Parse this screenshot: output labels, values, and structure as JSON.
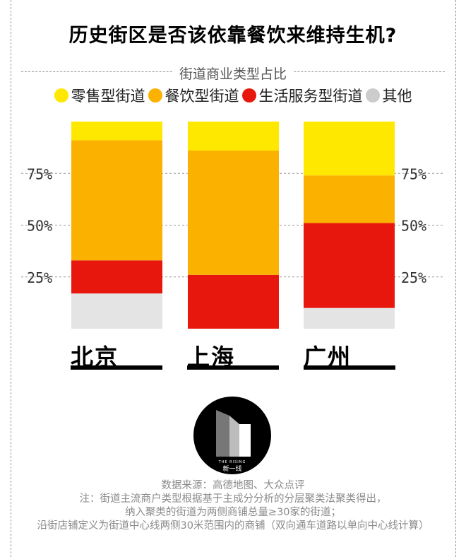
{
  "title": "历史街区是否该依靠餐饮来维持生机?",
  "subtitle": "街道商业类型占比",
  "legend": [
    {
      "label": "零售型街道",
      "color": "#ffe800"
    },
    {
      "label": "餐饮型街道",
      "color": "#fbb100"
    },
    {
      "label": "生活服务型街道",
      "color": "#e8170d"
    },
    {
      "label": "其他",
      "color": "#cccccc"
    }
  ],
  "chart_data": {
    "type": "bar",
    "stacked": true,
    "categories": [
      "北京",
      "上海",
      "广州"
    ],
    "series": [
      {
        "name": "其他",
        "color": "#e4e4e4",
        "values": [
          17,
          0,
          10
        ]
      },
      {
        "name": "生活服务型街道",
        "color": "#e8170d",
        "values": [
          16,
          26,
          41
        ]
      },
      {
        "name": "餐饮型街道",
        "color": "#fbb100",
        "values": [
          58,
          60,
          23
        ]
      },
      {
        "name": "零售型街道",
        "color": "#ffe800",
        "values": [
          9,
          14,
          26
        ]
      }
    ],
    "ylim": [
      0,
      100
    ],
    "yticks": [
      "25%",
      "50%",
      "75%"
    ],
    "ytick_values": [
      25,
      50,
      75
    ],
    "grid": true,
    "legend_position": "top"
  },
  "logo": {
    "text": "新一线",
    "small_text": "THE RISING"
  },
  "notes": [
    "数据来源：高德地图、大众点评",
    "注：街道主流商户类型根据基于主成分分析的分层聚类法聚类得出，",
    "纳入聚类的街道为两侧商铺总量≥30家的街道；",
    "沿街店铺定义为街道中心线两侧30米范围内的商铺（双向通车道路以单向中心线计算）"
  ]
}
